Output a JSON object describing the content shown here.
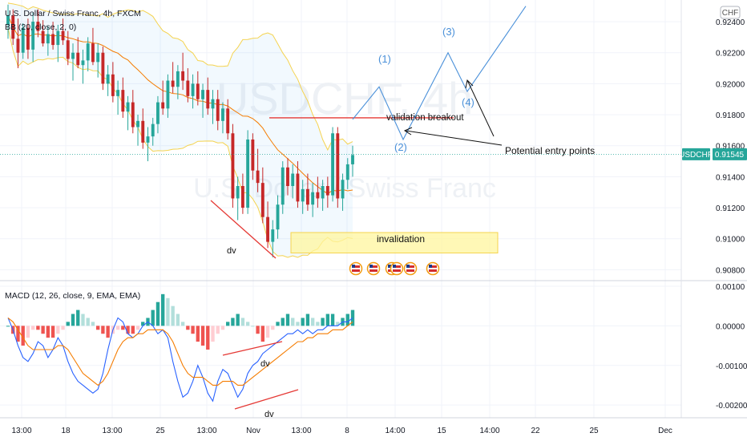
{
  "header": {
    "symbol_line": "U.S. Dollar / Swiss Franc, 4h, FXCM",
    "indicator_line": "BB (20, close, 2, 0)"
  },
  "watermark": {
    "ticker": "USDCHF, 4h",
    "name": "U.S. Dollar / Swiss Franc"
  },
  "price_axis": {
    "currency_badge": "CHF",
    "ticks": [
      "0.92400",
      "0.92200",
      "0.92000",
      "0.91800",
      "0.91600",
      "0.91400",
      "0.91200",
      "0.91000",
      "0.90800"
    ],
    "current_symbol": "USDCHF",
    "current_price": "0.91545",
    "badge_color": "#26a69a"
  },
  "macd_panel": {
    "title": "MACD (12, 26, close, 9, EMA, EMA)",
    "ticks": [
      "0.00100",
      "0.00000",
      "-0.00100",
      "-0.00200"
    ]
  },
  "time_axis": {
    "ticks": [
      "13:00",
      "18",
      "13:00",
      "25",
      "13:00",
      "Nov",
      "13:00",
      "8",
      "14:00",
      "15",
      "14:00",
      "22",
      "25",
      "Dec"
    ]
  },
  "annotations": {
    "validation": "validation breakout",
    "invalidation": "invalidation",
    "entry": "Potential entry points",
    "wave1": "(1)",
    "wave2": "(2)",
    "wave3": "(3)",
    "wave4": "(4)",
    "dv_price": "dv",
    "dv_macd_1": "dv",
    "dv_macd_2": "dv"
  },
  "colors": {
    "up": "#26a69a",
    "down": "#ef5350",
    "candle_down": "#c62828",
    "bb_band": "#f5d34f",
    "bb_basis": "#f57c00",
    "macd_line": "#2962ff",
    "signal_line": "#f57c00",
    "elliott": "#4a90d9",
    "hist_up_strong": "#26a69a",
    "hist_up_weak": "#b2dfdb",
    "hist_down_strong": "#ef5350",
    "hist_down_weak": "#ffcdd2"
  },
  "chart_data": {
    "type": "candlestick",
    "instrument": "USDCHF",
    "timeframe": "4h",
    "source": "FXCM",
    "price_range": [
      0.9074,
      0.9254
    ],
    "macd_range": [
      -0.0023,
      0.0011
    ],
    "ohlc": [
      [
        0.9238,
        0.9251,
        0.9229,
        0.9244
      ],
      [
        0.9244,
        0.9248,
        0.9225,
        0.9229
      ],
      [
        0.9229,
        0.9242,
        0.921,
        0.922
      ],
      [
        0.922,
        0.9239,
        0.9216,
        0.9236
      ],
      [
        0.9236,
        0.9242,
        0.9216,
        0.9222
      ],
      [
        0.9222,
        0.9246,
        0.9214,
        0.924
      ],
      [
        0.924,
        0.9248,
        0.923,
        0.9234
      ],
      [
        0.9234,
        0.9241,
        0.9224,
        0.9226
      ],
      [
        0.9226,
        0.9237,
        0.9218,
        0.9232
      ],
      [
        0.9232,
        0.924,
        0.9222,
        0.9225
      ],
      [
        0.9225,
        0.9238,
        0.9214,
        0.9234
      ],
      [
        0.9234,
        0.9242,
        0.9225,
        0.9228
      ],
      [
        0.9228,
        0.9234,
        0.9212,
        0.9216
      ],
      [
        0.9216,
        0.9226,
        0.9202,
        0.922
      ],
      [
        0.922,
        0.923,
        0.921,
        0.9212
      ],
      [
        0.9212,
        0.9222,
        0.92,
        0.9215
      ],
      [
        0.9215,
        0.923,
        0.9208,
        0.9226
      ],
      [
        0.9226,
        0.9236,
        0.9212,
        0.9214
      ],
      [
        0.9214,
        0.9226,
        0.9204,
        0.922
      ],
      [
        0.922,
        0.9224,
        0.9196,
        0.92
      ],
      [
        0.92,
        0.9212,
        0.9192,
        0.9206
      ],
      [
        0.9206,
        0.9214,
        0.9188,
        0.9192
      ],
      [
        0.9192,
        0.9202,
        0.918,
        0.9196
      ],
      [
        0.9196,
        0.9204,
        0.9178,
        0.9182
      ],
      [
        0.9182,
        0.9192,
        0.917,
        0.9188
      ],
      [
        0.9188,
        0.9196,
        0.9168,
        0.9172
      ],
      [
        0.9172,
        0.918,
        0.916,
        0.9176
      ],
      [
        0.9176,
        0.9184,
        0.9158,
        0.9162
      ],
      [
        0.9162,
        0.9172,
        0.915,
        0.9166
      ],
      [
        0.9166,
        0.9178,
        0.916,
        0.9174
      ],
      [
        0.9174,
        0.9192,
        0.9168,
        0.9188
      ],
      [
        0.9188,
        0.9202,
        0.918,
        0.9184
      ],
      [
        0.9184,
        0.9206,
        0.9178,
        0.9202
      ],
      [
        0.9202,
        0.9214,
        0.9194,
        0.9198
      ],
      [
        0.9198,
        0.9212,
        0.919,
        0.9208
      ],
      [
        0.9208,
        0.922,
        0.9196,
        0.9202
      ],
      [
        0.9202,
        0.921,
        0.9188,
        0.9192
      ],
      [
        0.9192,
        0.9206,
        0.9184,
        0.92
      ],
      [
        0.92,
        0.9208,
        0.9186,
        0.919
      ],
      [
        0.919,
        0.92,
        0.9178,
        0.9196
      ],
      [
        0.9196,
        0.9204,
        0.918,
        0.9184
      ],
      [
        0.9184,
        0.9196,
        0.9174,
        0.919
      ],
      [
        0.919,
        0.9196,
        0.917,
        0.9176
      ],
      [
        0.9176,
        0.9188,
        0.9168,
        0.9184
      ],
      [
        0.9184,
        0.919,
        0.9164,
        0.9168
      ],
      [
        0.9168,
        0.9174,
        0.912,
        0.9126
      ],
      [
        0.9126,
        0.914,
        0.9112,
        0.9134
      ],
      [
        0.9134,
        0.9142,
        0.9116,
        0.912
      ],
      [
        0.912,
        0.917,
        0.9116,
        0.9164
      ],
      [
        0.9164,
        0.9168,
        0.9138,
        0.9144
      ],
      [
        0.9144,
        0.9158,
        0.913,
        0.9136
      ],
      [
        0.9136,
        0.9146,
        0.911,
        0.9114
      ],
      [
        0.9114,
        0.9124,
        0.9094,
        0.9098
      ],
      [
        0.9098,
        0.9112,
        0.9088,
        0.9106
      ],
      [
        0.9106,
        0.9128,
        0.91,
        0.9122
      ],
      [
        0.9122,
        0.915,
        0.9116,
        0.9146
      ],
      [
        0.9146,
        0.9152,
        0.9128,
        0.9134
      ],
      [
        0.9134,
        0.9148,
        0.9126,
        0.9142
      ],
      [
        0.9142,
        0.915,
        0.912,
        0.9124
      ],
      [
        0.9124,
        0.9138,
        0.9116,
        0.9132
      ],
      [
        0.9132,
        0.9142,
        0.9118,
        0.9122
      ],
      [
        0.9122,
        0.9136,
        0.9114,
        0.913
      ],
      [
        0.913,
        0.914,
        0.912,
        0.9126
      ],
      [
        0.9126,
        0.9138,
        0.9118,
        0.9134
      ],
      [
        0.9134,
        0.914,
        0.912,
        0.9128
      ],
      [
        0.9128,
        0.9172,
        0.9124,
        0.9168
      ],
      [
        0.9168,
        0.9172,
        0.912,
        0.9126
      ],
      [
        0.9126,
        0.9142,
        0.9118,
        0.9138
      ],
      [
        0.9138,
        0.9152,
        0.9132,
        0.9148
      ],
      [
        0.9148,
        0.916,
        0.914,
        0.9154
      ]
    ],
    "macd_histogram": [
      0.0,
      -0.0002,
      -0.0004,
      -0.0005,
      -0.0003,
      -0.0001,
      -0.0001,
      -0.0002,
      -0.0003,
      -0.0003,
      -0.0002,
      -0.0001,
      0.0001,
      0.0003,
      0.0004,
      0.0003,
      0.0002,
      0.0001,
      -0.0001,
      -0.0002,
      -0.0003,
      -0.0002,
      -0.0001,
      -0.0001,
      -0.0002,
      -0.0002,
      -0.0001,
      0.0001,
      0.0002,
      0.0004,
      0.0006,
      0.0008,
      0.0007,
      0.0005,
      0.0003,
      0.0001,
      -0.0001,
      -0.0002,
      -0.0004,
      -0.0005,
      -0.0006,
      -0.0004,
      -0.0002,
      -0.0001,
      0.0001,
      0.0002,
      0.0003,
      0.0002,
      0.0001,
      0.0,
      -0.0002,
      -0.0004,
      -0.0003,
      -0.0001,
      0.0001,
      0.0002,
      0.0003,
      0.0002,
      0.0001,
      0.0002,
      0.0003,
      0.0002,
      0.0001,
      0.0002,
      0.0003,
      0.0003,
      0.0001,
      0.0002,
      0.0003,
      0.0004
    ],
    "macd_line": [
      0.0002,
      -0.0001,
      -0.0005,
      -0.0008,
      -0.0009,
      -0.0007,
      -0.0004,
      -0.0005,
      -0.0008,
      -0.0006,
      -0.0003,
      -0.0005,
      -0.0009,
      -0.0012,
      -0.0014,
      -0.0015,
      -0.0016,
      -0.0017,
      -0.0016,
      -0.0012,
      -0.0006,
      -0.0001,
      0.0002,
      0.0001,
      -0.0002,
      -0.0003,
      -0.0002,
      0.0,
      0.0001,
      0.0,
      -0.0002,
      -0.0001,
      -0.0003,
      -0.0009,
      -0.0014,
      -0.0018,
      -0.0017,
      -0.0014,
      -0.001,
      -0.0013,
      -0.0017,
      -0.0019,
      -0.0014,
      -0.0011,
      -0.0012,
      -0.0015,
      -0.0018,
      -0.0016,
      -0.0012,
      -0.001,
      -0.0009,
      -0.0007,
      -0.0006,
      -0.0005,
      -0.0004,
      -0.0003,
      -0.0002,
      -0.0002,
      -0.0001,
      -0.0002,
      -0.0001,
      -0.0002,
      -0.0001,
      -0.0001,
      0.0,
      0.0,
      0.0,
      0.0001,
      0.0001,
      0.0002
    ],
    "signal_line": [
      0.0002,
      0.0001,
      -0.0001,
      -0.0003,
      -0.0005,
      -0.0006,
      -0.0006,
      -0.0006,
      -0.0006,
      -0.0006,
      -0.0005,
      -0.0005,
      -0.0006,
      -0.0008,
      -0.001,
      -0.0012,
      -0.0013,
      -0.0014,
      -0.0015,
      -0.0014,
      -0.0012,
      -0.0009,
      -0.0006,
      -0.0004,
      -0.0003,
      -0.0003,
      -0.0002,
      -0.0002,
      -0.0001,
      -0.0001,
      -0.0001,
      -0.0001,
      -0.0002,
      -0.0004,
      -0.0007,
      -0.001,
      -0.0012,
      -0.0013,
      -0.0013,
      -0.0013,
      -0.0014,
      -0.0015,
      -0.0015,
      -0.0014,
      -0.0014,
      -0.0014,
      -0.0015,
      -0.0015,
      -0.0014,
      -0.0013,
      -0.0012,
      -0.0011,
      -0.001,
      -0.0009,
      -0.0008,
      -0.0007,
      -0.0006,
      -0.0005,
      -0.0004,
      -0.0004,
      -0.0003,
      -0.0003,
      -0.0002,
      -0.0002,
      -0.0002,
      -0.0001,
      -0.0001,
      -0.0001,
      0.0,
      0.0001
    ],
    "levels": {
      "validation_breakout": 0.9178,
      "invalidation_top": 0.9104,
      "invalidation_bottom": 0.9097
    },
    "elliott_projection": [
      {
        "label": "start",
        "price": 0.9177
      },
      {
        "label": "(1)",
        "price": 0.9198
      },
      {
        "label": "(2)",
        "price": 0.9164
      },
      {
        "label": "(3)",
        "price": 0.922
      },
      {
        "label": "(4)",
        "price": 0.9195
      },
      {
        "label": "end",
        "price": 0.925
      }
    ]
  }
}
